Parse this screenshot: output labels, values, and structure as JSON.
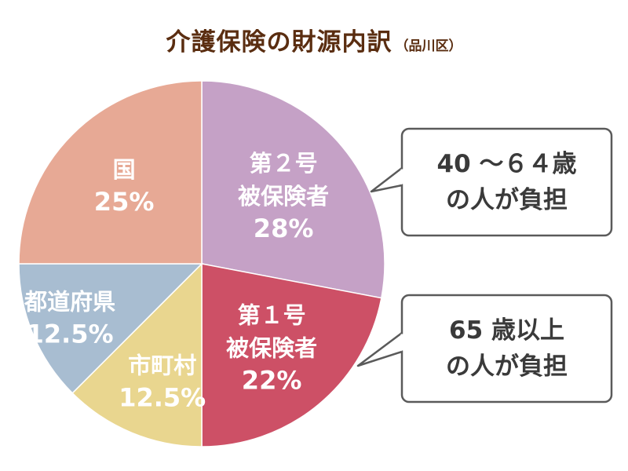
{
  "title": {
    "main": "介護保険の財源内訳",
    "sub": "（品川区）"
  },
  "chart_data": {
    "type": "pie",
    "start_angle_deg": 0,
    "direction": "clockwise",
    "slices": [
      {
        "lines": [
          "第２号",
          "被保険者"
        ],
        "pct_label": "28%",
        "value": 28,
        "color": "#c5a1c6"
      },
      {
        "lines": [
          "第１号",
          "被保険者"
        ],
        "pct_label": "22%",
        "value": 22,
        "color": "#cd5066"
      },
      {
        "lines": [
          "市町村"
        ],
        "pct_label": "12.5%",
        "value": 12.5,
        "color": "#e9d68f"
      },
      {
        "lines": [
          "都道府県"
        ],
        "pct_label": "12.5%",
        "value": 12.5,
        "color": "#a8bdd1"
      },
      {
        "lines": [
          "国"
        ],
        "pct_label": "25%",
        "value": 25,
        "color": "#e7a995"
      }
    ],
    "annotations": [
      {
        "target": "第２号 被保険者",
        "lines": [
          "40 ～６４歳",
          "の人が負担"
        ]
      },
      {
        "target": "第１号 被保険者",
        "lines": [
          "65 歳以上",
          "の人が負担"
        ]
      }
    ]
  }
}
